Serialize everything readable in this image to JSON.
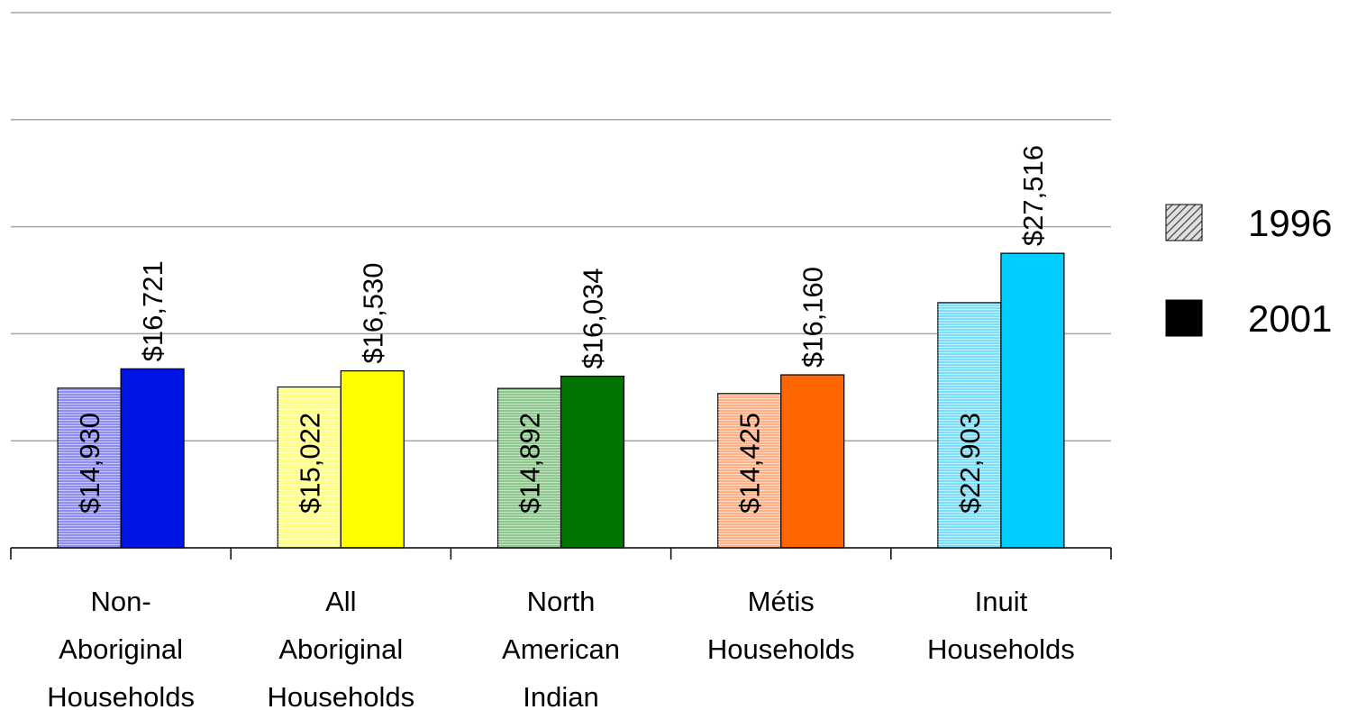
{
  "chart_data": {
    "type": "bar",
    "title": "",
    "xlabel": "",
    "ylabel": "",
    "ylim": [
      0,
      50000
    ],
    "y_gridlines": [
      10000,
      20000,
      30000,
      40000,
      50000
    ],
    "grid": true,
    "legend_position": "right",
    "categories": [
      [
        "Non-",
        "Aboriginal",
        "Households"
      ],
      [
        "All",
        "Aboriginal",
        "Households"
      ],
      [
        "North",
        "American",
        "Indian"
      ],
      [
        "Métis",
        "Households"
      ],
      [
        "Inuit",
        "Households"
      ]
    ],
    "series": [
      {
        "name": "1996",
        "values": [
          14930,
          15022,
          14892,
          14425,
          22903
        ],
        "labels": [
          "$14,930",
          "$15,022",
          "$14,892",
          "$14,425",
          "$22,903"
        ],
        "label_position": "inside"
      },
      {
        "name": "2001",
        "values": [
          16721,
          16530,
          16034,
          16160,
          27516
        ],
        "labels": [
          "$16,721",
          "$16,530",
          "$16,034",
          "$16,160",
          "$27,516"
        ],
        "label_position": "above"
      }
    ],
    "colors_1996": [
      "#8f8ff2",
      "#ffff88",
      "#8ec88e",
      "#ffb18a",
      "#80dff8"
    ],
    "colors_2001": [
      "#0014e6",
      "#ffff00",
      "#007300",
      "#ff6600",
      "#00ccff"
    ],
    "legend_swatch_1996": "hatched-gray",
    "legend_swatch_2001": "#000000"
  }
}
